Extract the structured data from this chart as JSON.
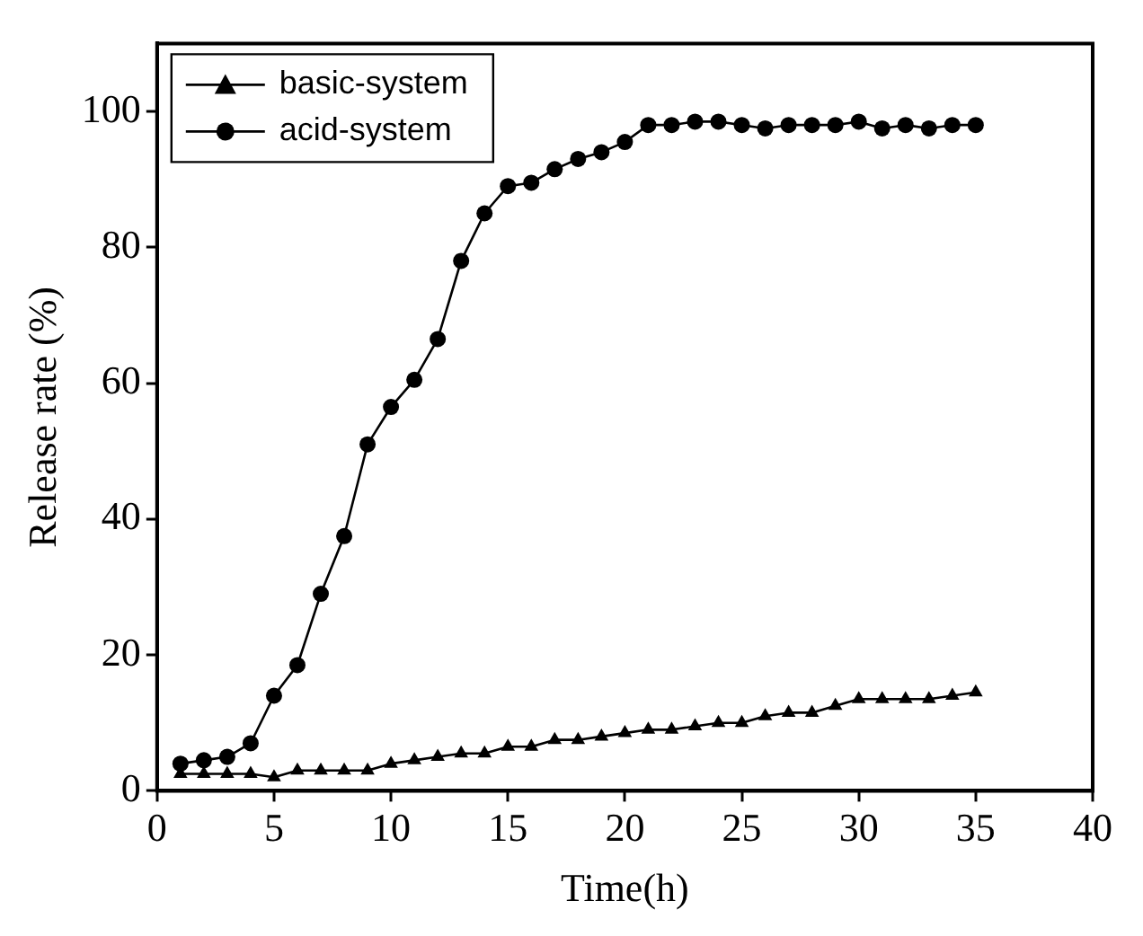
{
  "chart_data": {
    "type": "line",
    "xlabel": "Time(h)",
    "ylabel": "Release rate (%)",
    "x": [
      1,
      2,
      3,
      4,
      5,
      6,
      7,
      8,
      9,
      10,
      11,
      12,
      13,
      14,
      15,
      16,
      17,
      18,
      19,
      20,
      21,
      22,
      23,
      24,
      25,
      26,
      27,
      28,
      29,
      30,
      31,
      32,
      33,
      34,
      35
    ],
    "series": [
      {
        "name": "basic-system",
        "color": "#000000",
        "marker": "triangle",
        "values": [
          2.5,
          2.5,
          2.5,
          2.5,
          2,
          3,
          3,
          3,
          3,
          4,
          4.5,
          5,
          5.5,
          5.5,
          6.5,
          6.5,
          7.5,
          7.5,
          8,
          8.5,
          9,
          9,
          9.5,
          10,
          10,
          11,
          11.5,
          11.5,
          12.5,
          13.5,
          13.5,
          13.5,
          13.5,
          14,
          14.5
        ]
      },
      {
        "name": "acid-system",
        "color": "#000000",
        "marker": "circle",
        "values": [
          4,
          4.5,
          5,
          7,
          14,
          18.5,
          29,
          37.5,
          51,
          56.5,
          60.5,
          66.5,
          78,
          85,
          89,
          89.5,
          91.5,
          93,
          94,
          95.5,
          98,
          98,
          98.5,
          98.5,
          98,
          97.5,
          98,
          98,
          98,
          98.5,
          97.5,
          98,
          97.5,
          98,
          98
        ]
      }
    ],
    "xlim": [
      0,
      40
    ],
    "xticks": [
      0,
      5,
      10,
      15,
      20,
      25,
      30,
      35,
      40
    ],
    "ylim": [
      0,
      110
    ],
    "yticks": [
      0,
      20,
      40,
      60,
      80,
      100
    ],
    "grid": false,
    "legend": "top left",
    "line_style": "solid"
  }
}
